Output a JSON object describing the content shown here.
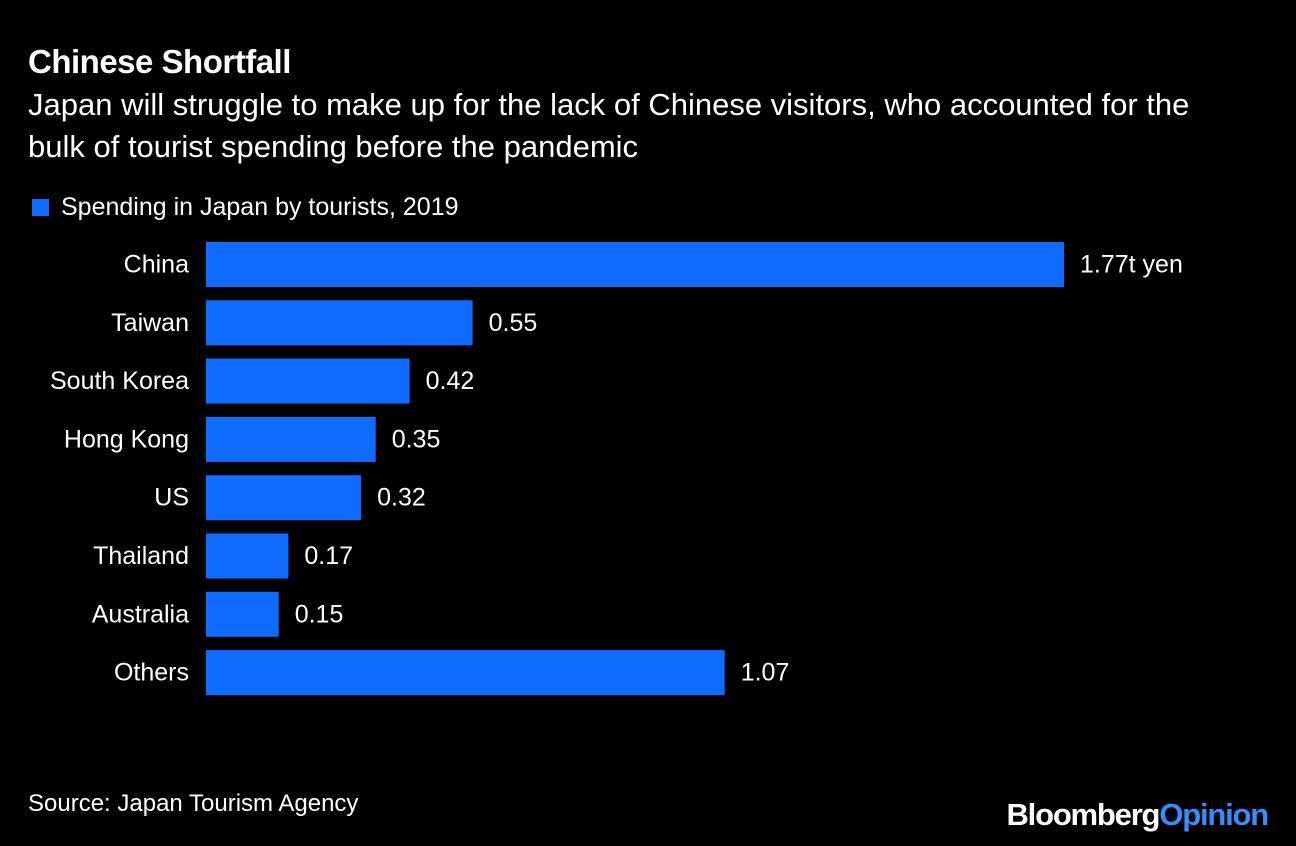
{
  "chart_data": {
    "type": "bar",
    "orientation": "horizontal",
    "title": "Chinese Shortfall",
    "subtitle": "Japan will struggle to make up for the lack of Chinese visitors, who accounted for the bulk of tourist spending before the pandemic",
    "categories": [
      "China",
      "Taiwan",
      "South Korea",
      "Hong Kong",
      "US",
      "Thailand",
      "Australia",
      "Others"
    ],
    "series": [
      {
        "name": "Spending in Japan by tourists, 2019",
        "values": [
          1.77,
          0.55,
          0.42,
          0.35,
          0.32,
          0.17,
          0.15,
          1.07
        ],
        "value_labels": [
          "1.77t yen",
          "0.55",
          "0.42",
          "0.35",
          "0.32",
          "0.17",
          "0.15",
          "1.07"
        ],
        "color": "#0f6cff"
      }
    ],
    "xlim": [
      0,
      1.77
    ],
    "grid": false,
    "legend_placement": "top-left"
  },
  "source": "Source: Japan Tourism Agency",
  "brand": {
    "part1": "Bloomberg",
    "part2": "Opinion"
  },
  "colors": {
    "background": "#000000",
    "text": "#ffffff",
    "bar": "#0f6cff",
    "brand_accent": "#3a8dff"
  }
}
